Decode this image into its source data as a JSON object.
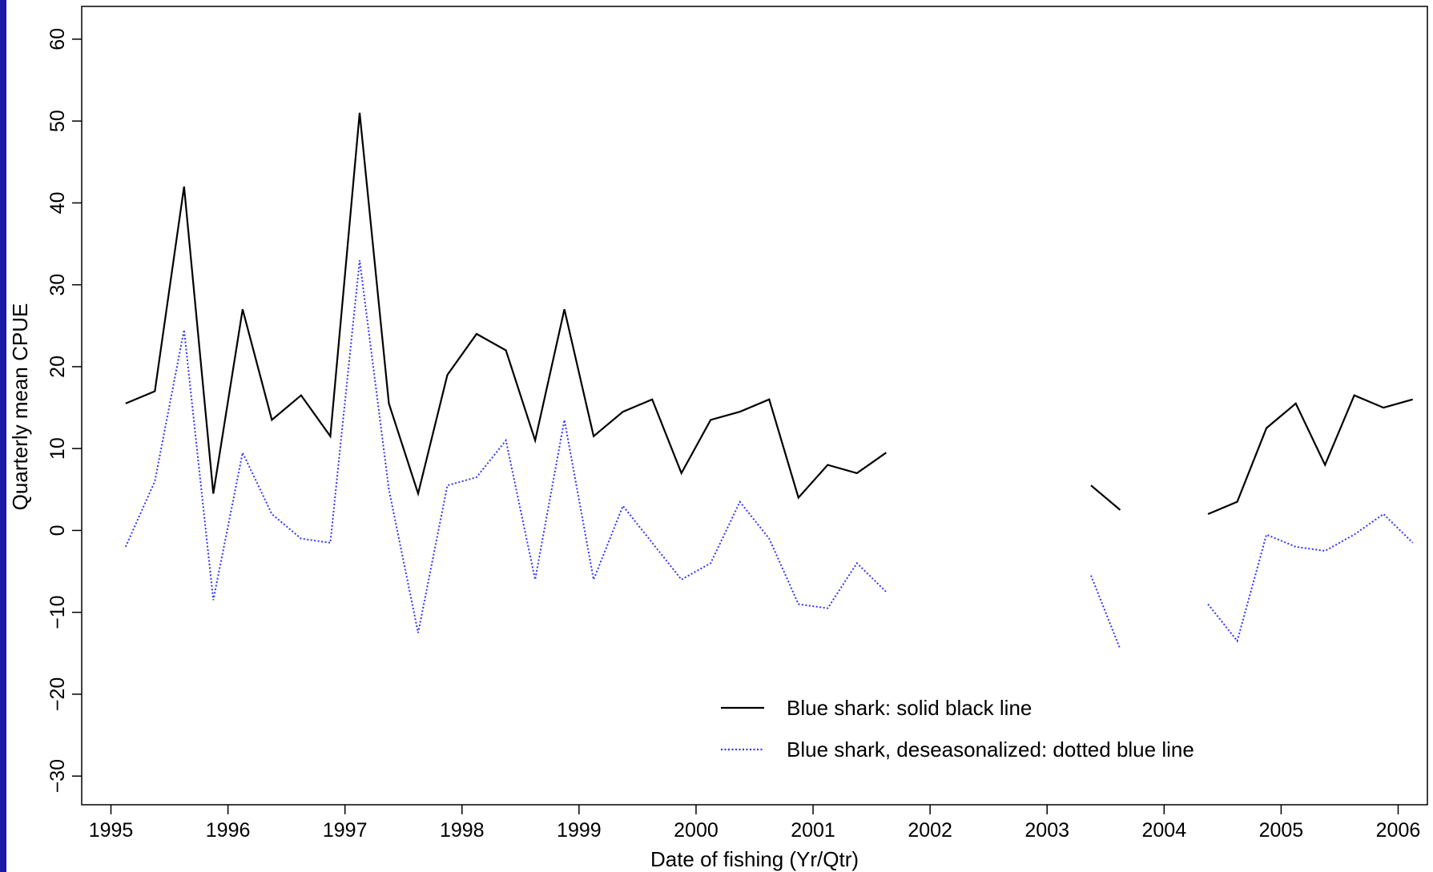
{
  "chart_data": {
    "type": "line",
    "xlabel": "Date of fishing (Yr/Qtr)",
    "ylabel": "Quarterly mean CPUE",
    "xlim": [
      1994.75,
      2006.25
    ],
    "ylim": [
      -33.5,
      64
    ],
    "x_ticks": [
      1995,
      1996,
      1997,
      1998,
      1999,
      2000,
      2001,
      2002,
      2003,
      2004,
      2005,
      2006
    ],
    "x_tick_labels": [
      "1995",
      "1996",
      "1997",
      "1998",
      "1999",
      "2000",
      "2001",
      "2002",
      "2003",
      "2004",
      "2005",
      "2006"
    ],
    "y_ticks": [
      -30,
      -20,
      -10,
      0,
      10,
      20,
      30,
      40,
      50,
      60
    ],
    "y_tick_labels": [
      "−30",
      "−20",
      "−10",
      "0",
      "10",
      "20",
      "30",
      "40",
      "50",
      "60"
    ],
    "grid": false,
    "legend_position": "bottom-right",
    "series": [
      {
        "name": "Blue shark: solid black line",
        "color": "#000000",
        "style": "solid",
        "segments": [
          {
            "x": [
              1995.125,
              1995.375,
              1995.625,
              1995.875,
              1996.125,
              1996.375,
              1996.625,
              1996.875,
              1997.125,
              1997.375,
              1997.625,
              1997.875,
              1998.125,
              1998.375,
              1998.625,
              1998.875,
              1999.125,
              1999.375,
              1999.625,
              1999.875,
              2000.125,
              2000.375,
              2000.625,
              2000.875,
              2001.125,
              2001.375,
              2001.625
            ],
            "y": [
              15.5,
              17.0,
              42.0,
              4.5,
              27.0,
              13.5,
              16.5,
              11.5,
              51.0,
              15.5,
              4.5,
              19.0,
              24.0,
              22.0,
              11.0,
              27.0,
              11.5,
              14.5,
              16.0,
              7.0,
              13.5,
              14.5,
              16.0,
              4.0,
              8.0,
              7.0,
              9.5
            ]
          },
          {
            "x": [
              2003.375,
              2003.625
            ],
            "y": [
              5.5,
              2.5
            ]
          },
          {
            "x": [
              2004.375,
              2004.625,
              2004.875,
              2005.125,
              2005.375,
              2005.625,
              2005.875,
              2006.125
            ],
            "y": [
              2.0,
              3.5,
              12.5,
              15.5,
              8.0,
              16.5,
              15.0,
              16.0
            ]
          }
        ]
      },
      {
        "name": "Blue shark, deseasonalized: dotted blue line",
        "color": "#3333ff",
        "style": "dotted",
        "segments": [
          {
            "x": [
              1995.125,
              1995.375,
              1995.625,
              1995.875,
              1996.125,
              1996.375,
              1996.625,
              1996.875,
              1997.125,
              1997.375,
              1997.625,
              1997.875,
              1998.125,
              1998.375,
              1998.625,
              1998.875,
              1999.125,
              1999.375,
              1999.625,
              1999.875,
              2000.125,
              2000.375,
              2000.625,
              2000.875,
              2001.125,
              2001.375,
              2001.625
            ],
            "y": [
              -2.0,
              6.0,
              24.5,
              -8.5,
              9.5,
              2.0,
              -1.0,
              -1.5,
              33.0,
              5.0,
              -12.5,
              5.5,
              6.5,
              11.0,
              -6.0,
              13.5,
              -6.0,
              3.0,
              -1.5,
              -6.0,
              -4.0,
              3.5,
              -1.0,
              -9.0,
              -9.5,
              -4.0,
              -7.5
            ]
          },
          {
            "x": [
              2003.375,
              2003.625
            ],
            "y": [
              -5.5,
              -14.5
            ]
          },
          {
            "x": [
              2004.375,
              2004.625,
              2004.875,
              2005.125,
              2005.375,
              2005.625,
              2005.875,
              2006.125
            ],
            "y": [
              -9.0,
              -13.5,
              -0.5,
              -2.0,
              -2.5,
              -0.5,
              2.0,
              -1.5
            ]
          }
        ]
      }
    ]
  }
}
